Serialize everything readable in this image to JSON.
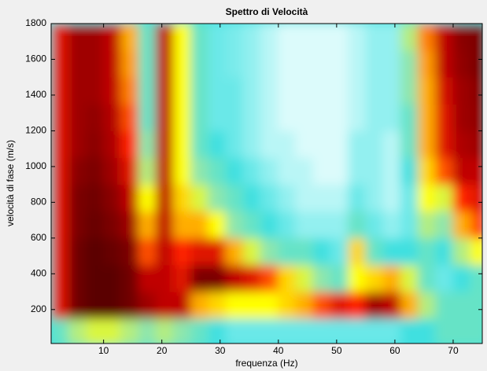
{
  "chart_data": {
    "type": "heatmap",
    "title": "Spettro di Velocità",
    "x_label": "frequenza (Hz)",
    "y_label": "velocità di fase (m/s)",
    "xlim": [
      1,
      75
    ],
    "ylim": [
      10,
      1800
    ],
    "xticks": [
      10,
      20,
      30,
      40,
      50,
      60,
      70
    ],
    "yticks": [
      200,
      400,
      600,
      800,
      1000,
      1200,
      1400,
      1600,
      1800
    ],
    "colormap": [
      "#ffffff",
      "#a8f4f4",
      "#40e0e0",
      "#a0e8a0",
      "#ffff00",
      "#ff9800",
      "#ff2000",
      "#b00000",
      "#5a0000"
    ],
    "x": [
      2.5,
      5.5,
      8.5,
      11.5,
      14.5,
      17.5,
      20.5,
      23.5,
      26.5,
      29.5,
      32.5,
      35.5,
      38.5,
      41.5,
      44.5,
      47.5,
      50.5,
      53.5,
      56.5,
      59.5,
      62.5,
      65.5,
      68.5,
      71.5,
      74.5
    ],
    "y": [
      75,
      225,
      375,
      525,
      675,
      825,
      975,
      1125,
      1275,
      1425,
      1575,
      1725
    ],
    "values": [
      [
        0.3,
        0.4,
        0.45,
        0.45,
        0.4,
        0.35,
        0.4,
        0.35,
        0.3,
        0.25,
        0.2,
        0.2,
        0.2,
        0.2,
        0.2,
        0.2,
        0.2,
        0.2,
        0.2,
        0.2,
        0.25,
        0.25,
        0.3,
        0.3,
        0.3
      ],
      [
        0.8,
        0.97,
        1,
        1,
        0.97,
        0.9,
        0.85,
        0.85,
        0.6,
        0.55,
        0.5,
        0.5,
        0.5,
        0.55,
        0.6,
        0.7,
        0.8,
        0.75,
        0.9,
        0.85,
        0.6,
        0.4,
        0.3,
        0.3,
        0.3
      ],
      [
        0.8,
        0.97,
        1,
        1,
        0.97,
        0.85,
        0.85,
        0.8,
        0.95,
        0.95,
        0.85,
        0.8,
        0.7,
        0.55,
        0.45,
        0.35,
        0.3,
        0.5,
        0.55,
        0.6,
        0.45,
        0.3,
        0.2,
        0.25,
        0.3
      ],
      [
        0.8,
        0.97,
        1,
        0.98,
        0.95,
        0.7,
        0.85,
        0.75,
        0.8,
        0.8,
        0.6,
        0.45,
        0.35,
        0.3,
        0.3,
        0.25,
        0.2,
        0.55,
        0.3,
        0.25,
        0.25,
        0.3,
        0.25,
        0.4,
        0.5
      ],
      [
        0.8,
        0.95,
        0.98,
        0.95,
        0.9,
        0.6,
        0.85,
        0.6,
        0.6,
        0.5,
        0.35,
        0.3,
        0.25,
        0.2,
        0.15,
        0.15,
        0.15,
        0.3,
        0.2,
        0.15,
        0.2,
        0.4,
        0.35,
        0.6,
        0.7
      ],
      [
        0.8,
        0.95,
        0.97,
        0.93,
        0.85,
        0.5,
        0.85,
        0.55,
        0.45,
        0.35,
        0.3,
        0.25,
        0.2,
        0.15,
        0.1,
        0.1,
        0.1,
        0.2,
        0.15,
        0.1,
        0.2,
        0.5,
        0.45,
        0.75,
        0.8
      ],
      [
        0.8,
        0.93,
        0.95,
        0.9,
        0.8,
        0.4,
        0.85,
        0.5,
        0.35,
        0.3,
        0.25,
        0.2,
        0.15,
        0.1,
        0.1,
        0.05,
        0.05,
        0.15,
        0.15,
        0.1,
        0.25,
        0.55,
        0.7,
        0.85,
        0.85
      ],
      [
        0.8,
        0.9,
        0.93,
        0.88,
        0.75,
        0.35,
        0.85,
        0.5,
        0.3,
        0.25,
        0.2,
        0.15,
        0.1,
        0.1,
        0.05,
        0.05,
        0.05,
        0.15,
        0.15,
        0.1,
        0.3,
        0.6,
        0.8,
        0.88,
        0.9
      ],
      [
        0.8,
        0.9,
        0.92,
        0.87,
        0.7,
        0.3,
        0.85,
        0.5,
        0.3,
        0.2,
        0.2,
        0.15,
        0.1,
        0.05,
        0.05,
        0.05,
        0.05,
        0.1,
        0.15,
        0.15,
        0.3,
        0.6,
        0.8,
        0.9,
        0.92
      ],
      [
        0.8,
        0.9,
        0.9,
        0.85,
        0.65,
        0.3,
        0.85,
        0.5,
        0.3,
        0.2,
        0.2,
        0.15,
        0.1,
        0.05,
        0.05,
        0.05,
        0.05,
        0.1,
        0.15,
        0.15,
        0.35,
        0.6,
        0.82,
        0.9,
        0.93
      ],
      [
        0.8,
        0.9,
        0.9,
        0.85,
        0.62,
        0.3,
        0.85,
        0.5,
        0.3,
        0.2,
        0.18,
        0.15,
        0.1,
        0.05,
        0.05,
        0.05,
        0.05,
        0.1,
        0.15,
        0.15,
        0.35,
        0.62,
        0.85,
        0.92,
        0.95
      ],
      [
        0.8,
        0.9,
        0.9,
        0.85,
        0.6,
        0.3,
        0.85,
        0.5,
        0.3,
        0.2,
        0.18,
        0.15,
        0.1,
        0.05,
        0.05,
        0.05,
        0.05,
        0.1,
        0.15,
        0.15,
        0.4,
        0.65,
        0.85,
        0.93,
        0.95
      ]
    ]
  }
}
